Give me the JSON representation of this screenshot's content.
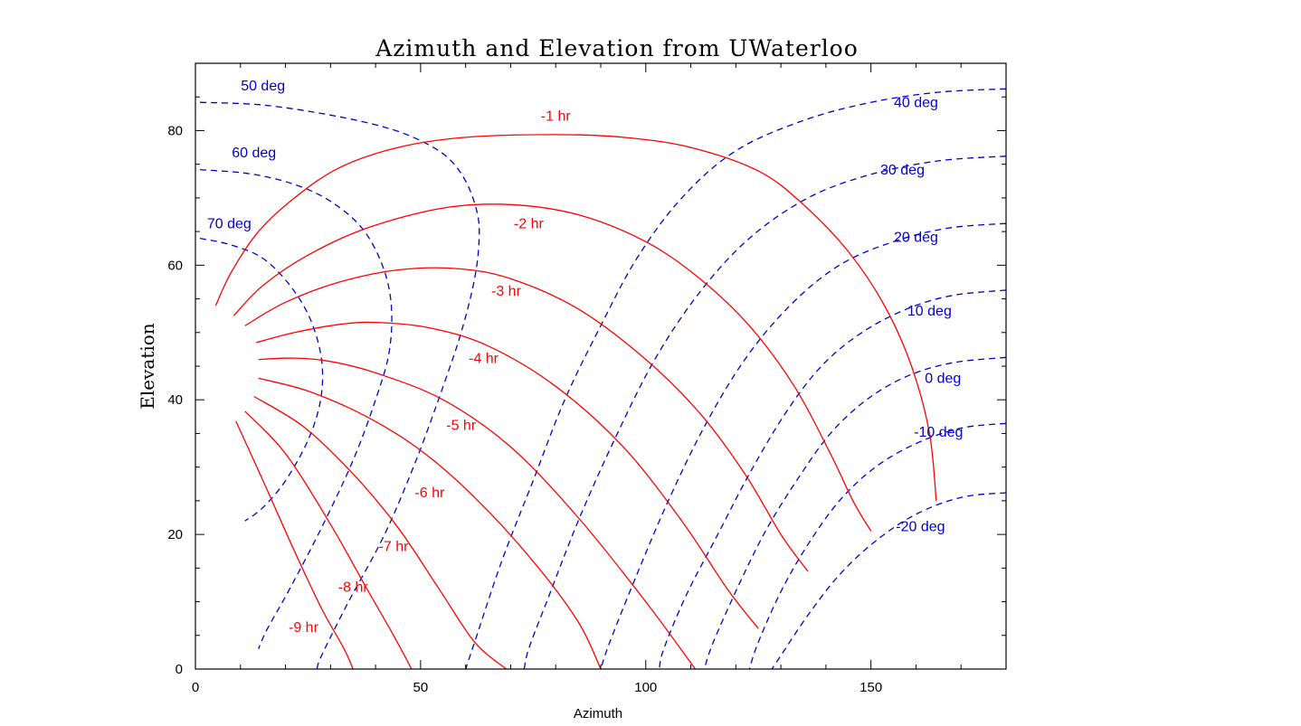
{
  "chart_data": {
    "type": "line",
    "title": "Azimuth and Elevation from UWaterloo",
    "xlabel": "Azimuth",
    "ylabel": "Elevation",
    "xlim": [
      0,
      180
    ],
    "ylim": [
      0,
      90
    ],
    "xticks": [
      0,
      50,
      100,
      150
    ],
    "yticks": [
      0,
      20,
      40,
      60,
      80
    ],
    "xtick_labels": [
      "0",
      "50",
      "100",
      "150"
    ],
    "ytick_labels": [
      "0",
      "20",
      "40",
      "60",
      "80"
    ],
    "colors": {
      "hour_lines": "#ff0000",
      "declination_lines": "#0000cc",
      "axes": "#000000"
    },
    "hour_angle_series": [
      {
        "name": "-1 hr",
        "label": "-1 hr",
        "label_at": [
          80,
          81.5
        ],
        "points": [
          [
            4.5,
            54
          ],
          [
            8,
            59
          ],
          [
            14,
            65
          ],
          [
            22,
            70
          ],
          [
            32,
            74.5
          ],
          [
            45,
            77.5
          ],
          [
            60,
            79
          ],
          [
            80,
            79.4
          ],
          [
            95,
            79
          ],
          [
            110,
            77.5
          ],
          [
            125,
            74
          ],
          [
            135,
            69
          ],
          [
            145,
            62
          ],
          [
            153,
            54
          ],
          [
            159,
            45
          ],
          [
            163,
            35
          ],
          [
            164.5,
            25
          ]
        ]
      },
      {
        "name": "-2 hr",
        "label": "-2 hr",
        "label_at": [
          74,
          65.5
        ],
        "points": [
          [
            8.5,
            52.5
          ],
          [
            15,
            57
          ],
          [
            25,
            61.5
          ],
          [
            38,
            65.5
          ],
          [
            55,
            68.5
          ],
          [
            70,
            69
          ],
          [
            85,
            67.5
          ],
          [
            100,
            63.5
          ],
          [
            112,
            58
          ],
          [
            123,
            51
          ],
          [
            133,
            42
          ],
          [
            141,
            32
          ],
          [
            146,
            25
          ],
          [
            150,
            20.5
          ]
        ]
      },
      {
        "name": "-3 hr",
        "label": "-3 hr",
        "label_at": [
          69,
          55.5
        ],
        "points": [
          [
            11,
            51
          ],
          [
            20,
            54.5
          ],
          [
            32,
            57.5
          ],
          [
            45,
            59.3
          ],
          [
            58,
            59.5
          ],
          [
            70,
            58
          ],
          [
            85,
            53.5
          ],
          [
            100,
            46
          ],
          [
            112,
            38
          ],
          [
            122,
            29
          ],
          [
            130,
            20
          ],
          [
            136,
            14.5
          ]
        ]
      },
      {
        "name": "-4 hr",
        "label": "-4 hr",
        "label_at": [
          64,
          45.5
        ],
        "points": [
          [
            13.5,
            48.5
          ],
          [
            22,
            50
          ],
          [
            32,
            51.2
          ],
          [
            40,
            51.5
          ],
          [
            52,
            50.7
          ],
          [
            65,
            48
          ],
          [
            80,
            42
          ],
          [
            95,
            33
          ],
          [
            108,
            22
          ],
          [
            118,
            12
          ],
          [
            125,
            6
          ]
        ]
      },
      {
        "name": "-5 hr",
        "label": "-5 hr",
        "label_at": [
          59,
          35.5
        ],
        "points": [
          [
            14,
            46
          ],
          [
            22,
            46.2
          ],
          [
            30,
            45.7
          ],
          [
            40,
            44
          ],
          [
            55,
            40
          ],
          [
            70,
            33
          ],
          [
            85,
            22.5
          ],
          [
            100,
            10
          ],
          [
            111,
            0
          ]
        ]
      },
      {
        "name": "-6 hr",
        "label": "-6 hr",
        "label_at": [
          52,
          25.5
        ],
        "points": [
          [
            14,
            43.2
          ],
          [
            25,
            41.3
          ],
          [
            38,
            37.5
          ],
          [
            50,
            32.5
          ],
          [
            62,
            25.5
          ],
          [
            75,
            16
          ],
          [
            85,
            7
          ],
          [
            90,
            0
          ]
        ]
      },
      {
        "name": "-7 hr",
        "label": "-7 hr",
        "label_at": [
          44,
          17.5
        ],
        "points": [
          [
            13,
            40.5
          ],
          [
            24,
            36
          ],
          [
            35,
            29
          ],
          [
            45,
            21
          ],
          [
            54,
            12
          ],
          [
            62,
            4
          ],
          [
            69,
            0
          ]
        ]
      },
      {
        "name": "-8 hr",
        "label": "-8 hr",
        "label_at": [
          35,
          11.5
        ],
        "points": [
          [
            11,
            38.3
          ],
          [
            20,
            32
          ],
          [
            30,
            21.5
          ],
          [
            38,
            12
          ],
          [
            44,
            5
          ],
          [
            48,
            0
          ]
        ]
      },
      {
        "name": "-9 hr",
        "label": "-9 hr",
        "label_at": [
          24,
          5.5
        ],
        "points": [
          [
            9,
            36.8
          ],
          [
            15,
            28
          ],
          [
            22,
            17.5
          ],
          [
            28,
            9
          ],
          [
            33,
            3
          ],
          [
            35,
            0
          ]
        ]
      }
    ],
    "declination_series": [
      {
        "name": "50 deg",
        "label": "50 deg",
        "label_at": [
          15,
          86
        ],
        "points": [
          [
            1,
            84.2
          ],
          [
            15,
            83.8
          ],
          [
            30,
            82.3
          ],
          [
            42,
            80.5
          ],
          [
            50,
            78.5
          ],
          [
            56,
            76
          ],
          [
            60,
            72.5
          ],
          [
            62.5,
            68
          ],
          [
            63,
            64
          ],
          [
            62,
            58
          ],
          [
            59,
            50
          ],
          [
            55,
            42
          ],
          [
            49,
            31
          ],
          [
            42,
            20
          ],
          [
            34,
            10
          ],
          [
            28,
            2
          ],
          [
            27,
            0
          ]
        ]
      },
      {
        "name": "60 deg",
        "label": "60 deg",
        "label_at": [
          13,
          76
        ],
        "points": [
          [
            1,
            74.2
          ],
          [
            12,
            73.6
          ],
          [
            22,
            72
          ],
          [
            30,
            69.5
          ],
          [
            37,
            65.5
          ],
          [
            41.5,
            60
          ],
          [
            43.5,
            54
          ],
          [
            43,
            47
          ],
          [
            40,
            40
          ],
          [
            35,
            31
          ],
          [
            28,
            21
          ],
          [
            21,
            12
          ],
          [
            16,
            6
          ],
          [
            14,
            3
          ]
        ]
      },
      {
        "name": "70 deg",
        "label": "70 deg",
        "label_at": [
          7.5,
          65.5
        ],
        "points": [
          [
            1,
            64
          ],
          [
            8,
            63
          ],
          [
            15,
            61
          ],
          [
            21,
            57
          ],
          [
            25.5,
            52
          ],
          [
            28,
            46
          ],
          [
            27.8,
            40
          ],
          [
            25,
            34
          ],
          [
            20,
            28
          ],
          [
            15,
            24
          ],
          [
            11,
            22
          ]
        ]
      },
      {
        "name": "40 deg",
        "label": "40 deg",
        "label_at": [
          160,
          83.5
        ],
        "points": [
          [
            180,
            86.2
          ],
          [
            165,
            85.7
          ],
          [
            150,
            84.2
          ],
          [
            135,
            81.5
          ],
          [
            120,
            77
          ],
          [
            108,
            70
          ],
          [
            98,
            61
          ],
          [
            90,
            51
          ],
          [
            82,
            40
          ],
          [
            75,
            28
          ],
          [
            68,
            16
          ],
          [
            62,
            4
          ],
          [
            60,
            0
          ]
        ]
      },
      {
        "name": "30 deg",
        "label": "30 deg",
        "label_at": [
          157,
          73.5
        ],
        "points": [
          [
            180,
            76.2
          ],
          [
            165,
            75.5
          ],
          [
            150,
            73.5
          ],
          [
            136,
            70
          ],
          [
            123,
            64
          ],
          [
            112,
            56
          ],
          [
            102,
            46
          ],
          [
            93,
            34
          ],
          [
            85,
            22
          ],
          [
            78,
            10
          ],
          [
            74,
            3
          ],
          [
            73,
            0
          ]
        ]
      },
      {
        "name": "20 deg",
        "label": "20 deg",
        "label_at": [
          160,
          63.5
        ],
        "points": [
          [
            180,
            66.2
          ],
          [
            167,
            65.5
          ],
          [
            155,
            63.5
          ],
          [
            143,
            60
          ],
          [
            132,
            54
          ],
          [
            122,
            46
          ],
          [
            113,
            36
          ],
          [
            105,
            25
          ],
          [
            98,
            14
          ],
          [
            92,
            4
          ],
          [
            90,
            0
          ]
        ]
      },
      {
        "name": "10 deg",
        "label": "10 deg",
        "label_at": [
          163,
          52.5
        ],
        "points": [
          [
            180,
            56.3
          ],
          [
            168,
            55.5
          ],
          [
            158,
            53.5
          ],
          [
            148,
            50
          ],
          [
            139,
            45
          ],
          [
            131,
            38
          ],
          [
            123,
            29
          ],
          [
            116,
            20
          ],
          [
            109,
            11
          ],
          [
            104,
            3
          ],
          [
            103,
            0
          ]
        ]
      },
      {
        "name": "0 deg",
        "label": "0 deg",
        "label_at": [
          166,
          42.5
        ],
        "points": [
          [
            180,
            46.3
          ],
          [
            168,
            45.5
          ],
          [
            158,
            43.5
          ],
          [
            149,
            40
          ],
          [
            141,
            35
          ],
          [
            134,
            28.5
          ],
          [
            127,
            21
          ],
          [
            121,
            13
          ],
          [
            115,
            4
          ],
          [
            113,
            0
          ]
        ]
      },
      {
        "name": "-10 deg",
        "label": "-10 deg",
        "label_at": [
          165,
          34.5
        ],
        "points": [
          [
            180,
            36.5
          ],
          [
            170,
            35.8
          ],
          [
            160,
            33.5
          ],
          [
            151,
            30
          ],
          [
            143,
            25
          ],
          [
            136,
            18.5
          ],
          [
            130,
            11.5
          ],
          [
            125,
            4
          ],
          [
            123,
            0
          ]
        ]
      },
      {
        "name": "-20 deg",
        "label": "-20 deg",
        "label_at": [
          161,
          20.5
        ],
        "points": [
          [
            180,
            26.2
          ],
          [
            170,
            25.5
          ],
          [
            160,
            23
          ],
          [
            151,
            19
          ],
          [
            143,
            14
          ],
          [
            136,
            8
          ],
          [
            130,
            2
          ],
          [
            128,
            0
          ]
        ]
      }
    ]
  }
}
